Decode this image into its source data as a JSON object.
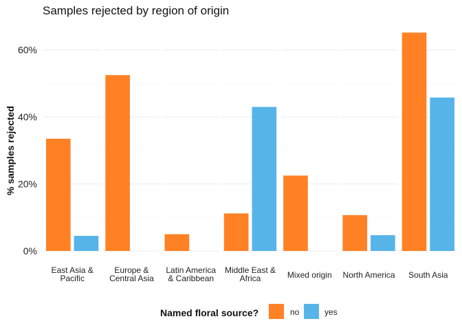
{
  "chart_data": {
    "type": "bar",
    "title": "Samples rejected by region of origin",
    "ylabel": "% samples rejected",
    "xlabel": "",
    "ylim": [
      0,
      70
    ],
    "yticks": [
      "0%",
      "20%",
      "40%",
      "60%"
    ],
    "ytick_values": [
      0,
      20,
      40,
      60
    ],
    "categories": [
      [
        "East Asia &",
        "Pacific"
      ],
      [
        "Europe &",
        "Central Asia"
      ],
      [
        "Latin America",
        "& Caribbean"
      ],
      [
        "Middle East &",
        "Africa"
      ],
      [
        "Mixed origin"
      ],
      [
        "North America"
      ],
      [
        "South Asia"
      ]
    ],
    "series": [
      {
        "name": "no",
        "color": "#FF8124",
        "values": [
          33.5,
          52.5,
          5.0,
          11.2,
          22.5,
          10.7,
          65.2
        ]
      },
      {
        "name": "yes",
        "color": "#56B4E9",
        "values": [
          4.5,
          0,
          0,
          43.0,
          0,
          4.7,
          45.8
        ]
      }
    ],
    "legend": {
      "title": "Named floral source?",
      "position": "bottom"
    },
    "grid": true
  }
}
